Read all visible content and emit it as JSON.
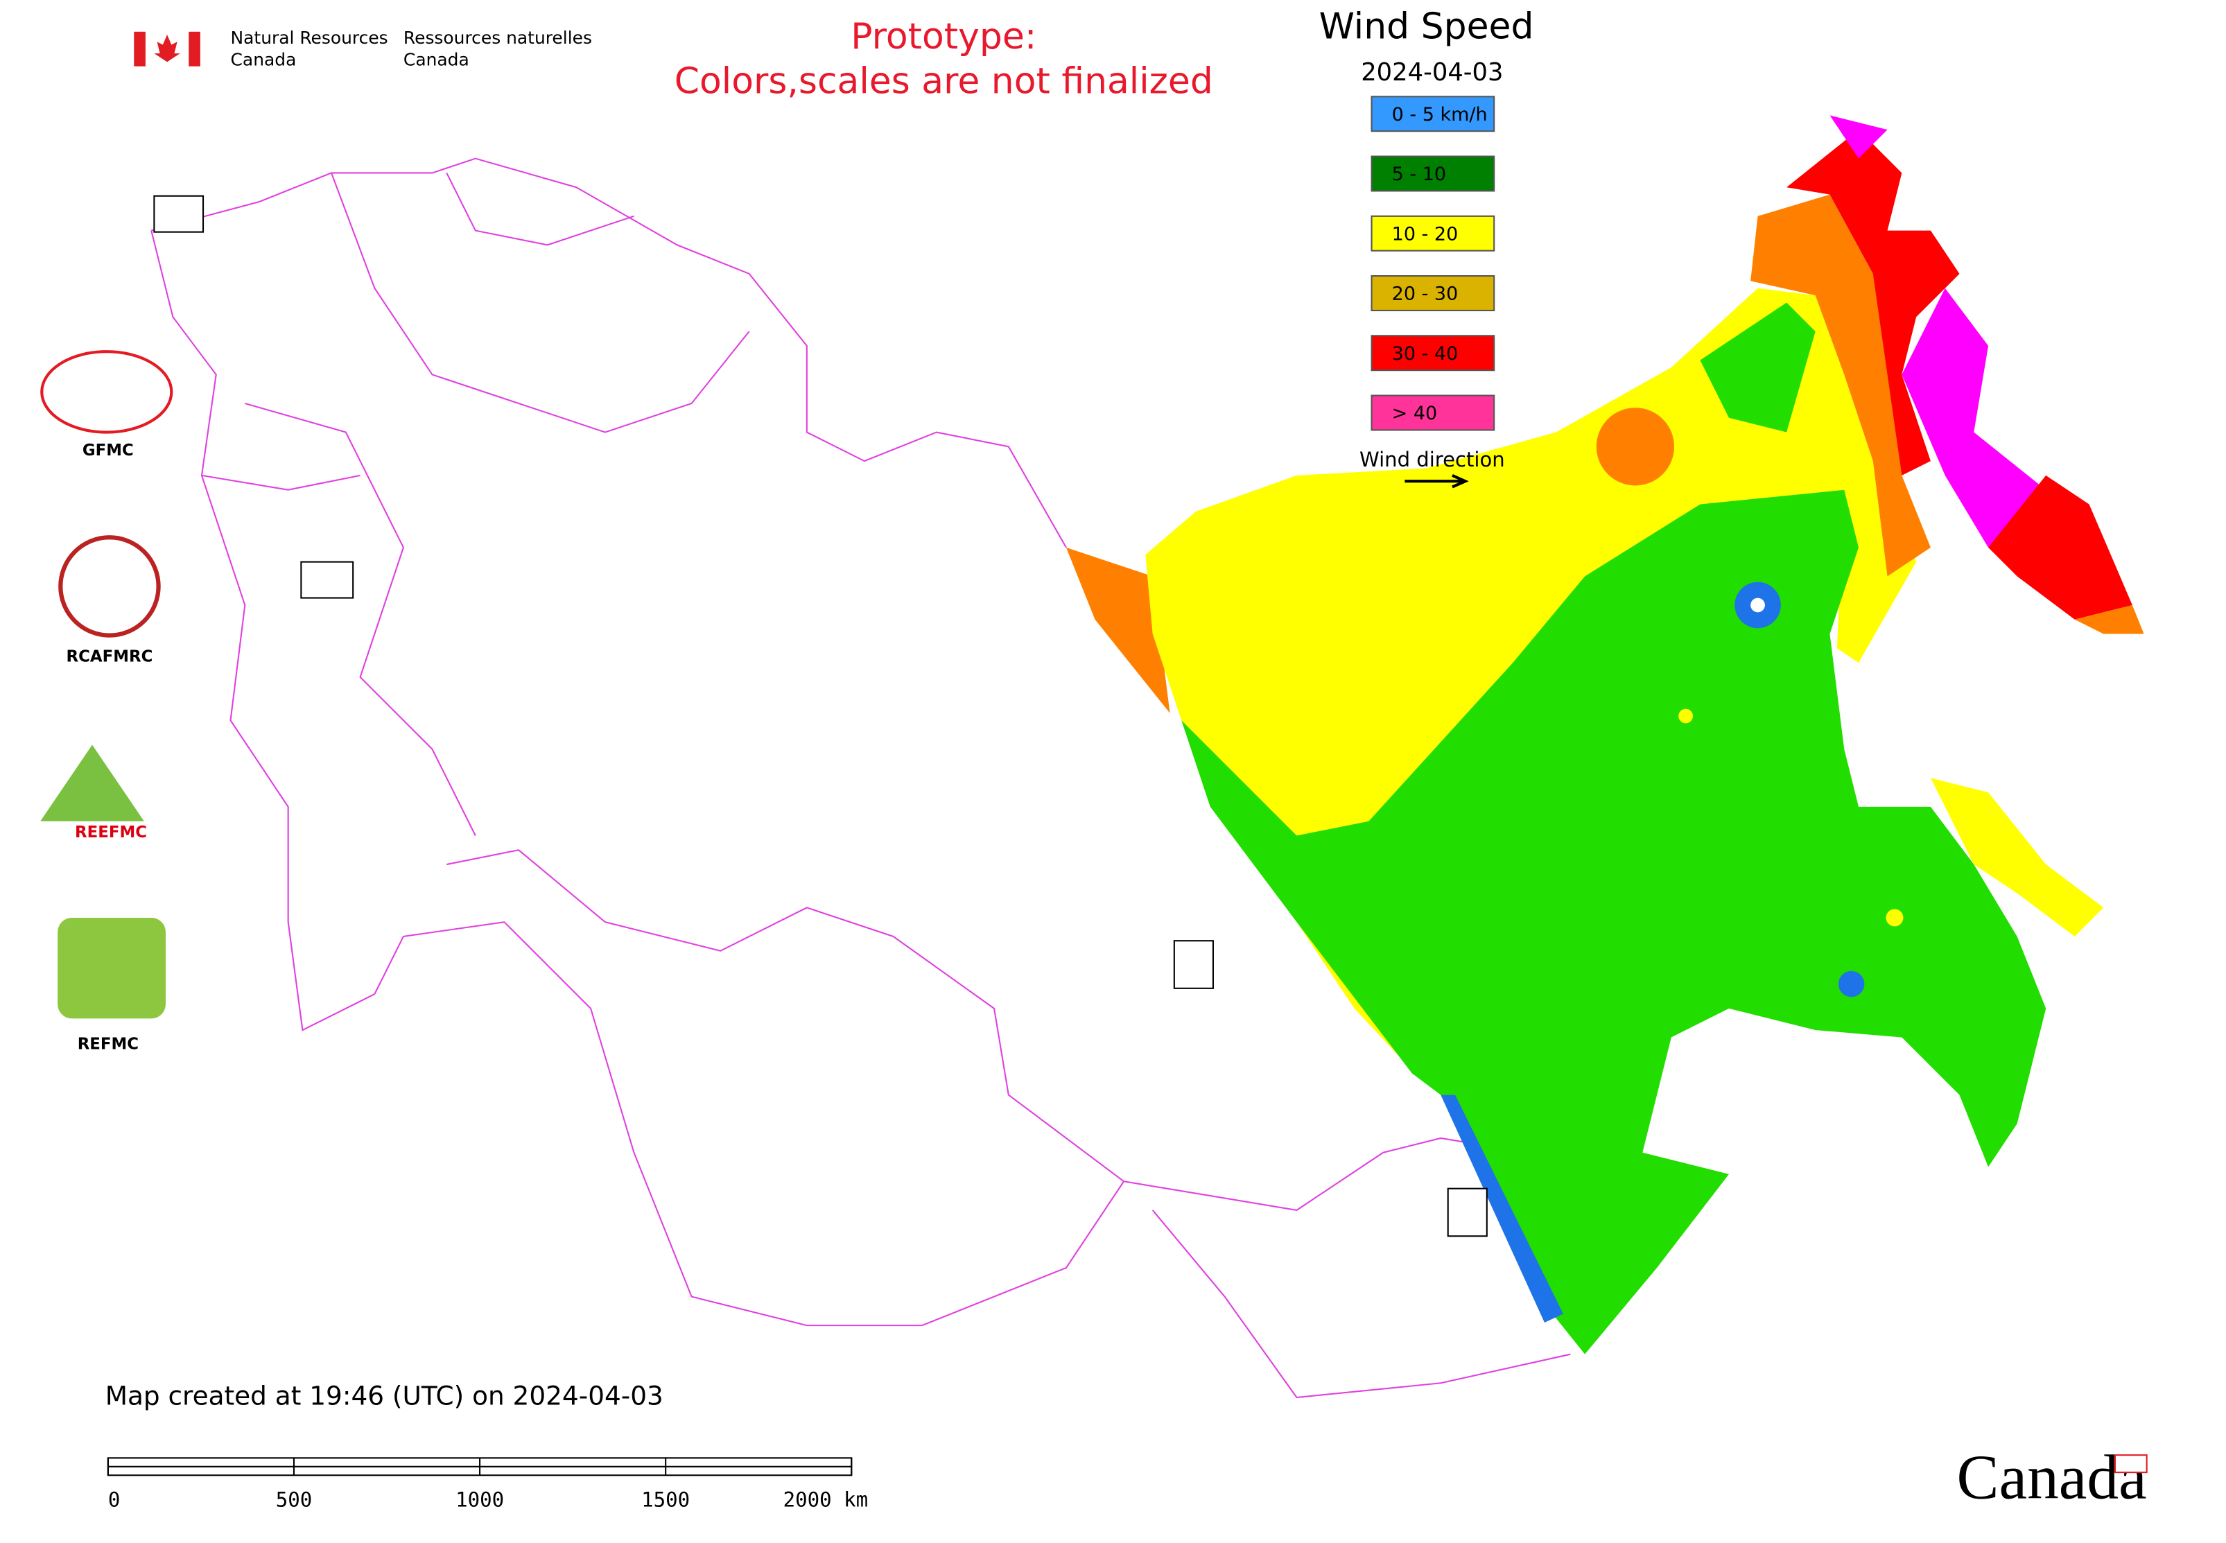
{
  "header": {
    "org_en": [
      "Natural Resources",
      "Canada"
    ],
    "org_fr": [
      "Ressources naturelles",
      "Canada"
    ],
    "notice": [
      "Prototype:",
      "Colors,scales are not finalized"
    ]
  },
  "legend": {
    "title": "Wind Speed",
    "date": "2024-04-03",
    "items": [
      {
        "label": "0 - 5 km/h",
        "color": "#3399ff"
      },
      {
        "label": "5 - 10",
        "color": "#008000"
      },
      {
        "label": "10 - 20",
        "color": "#ffff00"
      },
      {
        "label": "20 - 30",
        "color": "#d9b300"
      },
      {
        "label": "30 - 40",
        "color": "#ff0000"
      },
      {
        "label": "> 40",
        "color": "#ff3399"
      }
    ],
    "wind_direction": "Wind direction"
  },
  "logos": [
    "GFMC",
    "RCAFMRC",
    "REEFMC",
    "REFMC"
  ],
  "footer": {
    "created": "Map created at 19:46 (UTC) on 2024-04-03",
    "scale_labels": [
      "0",
      "500",
      "1000",
      "1500",
      "2000 km"
    ],
    "wordmark": "Canada"
  }
}
